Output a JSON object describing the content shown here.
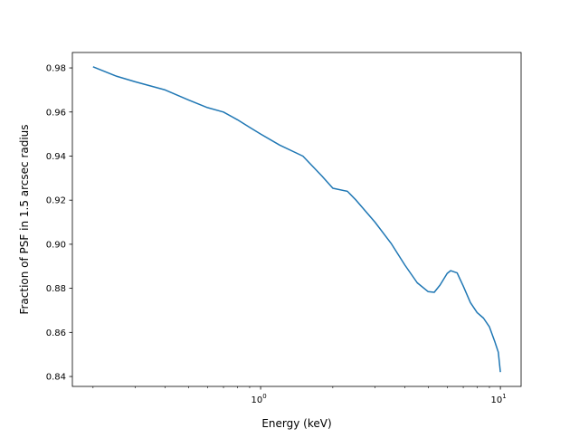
{
  "chart_data": {
    "type": "line",
    "title": "",
    "xlabel": "Energy (keV)",
    "ylabel": "Fraction of PSF in 1.5 arcsec radius",
    "xscale": "log",
    "xlim": [
      0.164,
      12.2
    ],
    "ylim": [
      0.8355,
      0.987
    ],
    "grid": false,
    "x_major_ticks": [
      {
        "value": 1,
        "label": "10^0"
      },
      {
        "value": 10,
        "label": "10^1"
      }
    ],
    "x_minor_ticks": [
      0.2,
      0.3,
      0.4,
      0.5,
      0.6,
      0.7,
      0.8,
      0.9,
      2,
      3,
      4,
      5,
      6,
      7,
      8,
      9
    ],
    "y_ticks": [
      {
        "value": 0.84,
        "label": "0.84"
      },
      {
        "value": 0.86,
        "label": "0.86"
      },
      {
        "value": 0.88,
        "label": "0.88"
      },
      {
        "value": 0.9,
        "label": "0.90"
      },
      {
        "value": 0.92,
        "label": "0.92"
      },
      {
        "value": 0.94,
        "label": "0.94"
      },
      {
        "value": 0.96,
        "label": "0.96"
      },
      {
        "value": 0.98,
        "label": "0.98"
      }
    ],
    "line_color": "#1f77b4",
    "series": [
      {
        "x": [
          0.2,
          0.25,
          0.3,
          0.4,
          0.5,
          0.6,
          0.7,
          0.8,
          0.9,
          1.0,
          1.2,
          1.5,
          1.8,
          2.0,
          2.3,
          2.5,
          3.0,
          3.5,
          4.0,
          4.5,
          5.0,
          5.3,
          5.6,
          6.0,
          6.2,
          6.6,
          7.0,
          7.5,
          8.0,
          8.5,
          9.0,
          9.5,
          9.8,
          10.0
        ],
        "y": [
          0.9805,
          0.9763,
          0.9737,
          0.97,
          0.9655,
          0.962,
          0.96,
          0.9565,
          0.953,
          0.95,
          0.945,
          0.94,
          0.931,
          0.9254,
          0.924,
          0.92,
          0.91,
          0.9004,
          0.8905,
          0.8825,
          0.8785,
          0.8782,
          0.8815,
          0.8868,
          0.888,
          0.887,
          0.881,
          0.8735,
          0.869,
          0.8665,
          0.8625,
          0.8555,
          0.851,
          0.842
        ]
      }
    ]
  }
}
